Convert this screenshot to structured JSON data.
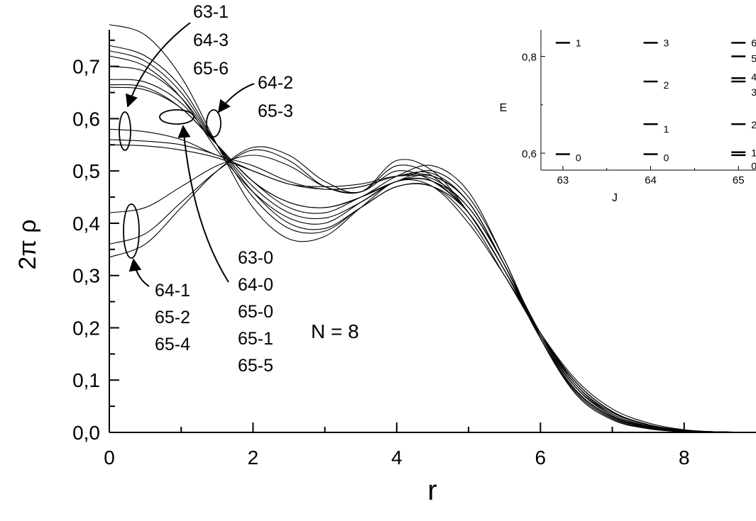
{
  "chart_data": [
    {
      "type": "line",
      "xlabel": "r",
      "ylabel": "2π ρ",
      "xlim": [
        0,
        9
      ],
      "ylim": [
        0,
        0.77
      ],
      "x_ticks": [
        0,
        2,
        4,
        6,
        8
      ],
      "x_tick_labels": [
        "0",
        "2",
        "4",
        "6",
        "8"
      ],
      "y_ticks": [
        0.0,
        0.1,
        0.2,
        0.3,
        0.4,
        0.5,
        0.6,
        0.7
      ],
      "y_tick_labels": [
        "0,0",
        "0,1",
        "0,2",
        "0,3",
        "0,4",
        "0,5",
        "0,6",
        "0,7"
      ],
      "grid": false,
      "series": [
        {
          "x": [
            0,
            0.5,
            1,
            1.5,
            2,
            2.5,
            3,
            3.5,
            4,
            4.5,
            5,
            5.5,
            6,
            6.5,
            7,
            7.5,
            8,
            8.5,
            9
          ],
          "y": [
            0.78,
            0.76,
            0.68,
            0.55,
            0.43,
            0.37,
            0.375,
            0.43,
            0.48,
            0.47,
            0.4,
            0.3,
            0.19,
            0.1,
            0.045,
            0.018,
            0.005,
            0.001,
            0.0
          ]
        },
        {
          "x": [
            0,
            0.5,
            1,
            1.5,
            2,
            2.5,
            3,
            3.5,
            4,
            4.5,
            5,
            5.5,
            6,
            6.5,
            7,
            7.5,
            8,
            8.5,
            9
          ],
          "y": [
            0.74,
            0.72,
            0.66,
            0.55,
            0.45,
            0.39,
            0.385,
            0.43,
            0.47,
            0.47,
            0.41,
            0.3,
            0.185,
            0.095,
            0.04,
            0.015,
            0.004,
            0.001,
            0.0
          ]
        },
        {
          "x": [
            0,
            0.5,
            1,
            1.5,
            2,
            2.5,
            3,
            3.5,
            4,
            4.5,
            5,
            5.5,
            6,
            6.5,
            7,
            7.5,
            8,
            8.5,
            9
          ],
          "y": [
            0.73,
            0.71,
            0.65,
            0.55,
            0.46,
            0.4,
            0.39,
            0.43,
            0.47,
            0.47,
            0.42,
            0.31,
            0.185,
            0.09,
            0.038,
            0.014,
            0.004,
            0.001,
            0.0
          ]
        },
        {
          "x": [
            0,
            0.5,
            1,
            1.5,
            2,
            2.5,
            3,
            3.5,
            4,
            4.5,
            5,
            5.5,
            6,
            6.5,
            7,
            7.5,
            8,
            8.5,
            9
          ],
          "y": [
            0.72,
            0.7,
            0.64,
            0.54,
            0.46,
            0.41,
            0.4,
            0.44,
            0.48,
            0.48,
            0.42,
            0.31,
            0.18,
            0.085,
            0.035,
            0.012,
            0.003,
            0.001,
            0.0
          ]
        },
        {
          "x": [
            0,
            0.5,
            1,
            1.5,
            2,
            2.5,
            3,
            3.5,
            4,
            4.5,
            5,
            5.5,
            6,
            6.5,
            7,
            7.5,
            8,
            8.5,
            9
          ],
          "y": [
            0.7,
            0.69,
            0.64,
            0.55,
            0.47,
            0.42,
            0.41,
            0.44,
            0.48,
            0.48,
            0.43,
            0.32,
            0.18,
            0.08,
            0.03,
            0.01,
            0.002,
            0.0,
            0.0
          ]
        },
        {
          "x": [
            0,
            0.5,
            1,
            1.5,
            2,
            2.5,
            3,
            3.5,
            4,
            4.5,
            5,
            5.5,
            6,
            6.5,
            7,
            7.5,
            8,
            8.5,
            9
          ],
          "y": [
            0.675,
            0.67,
            0.63,
            0.55,
            0.48,
            0.43,
            0.42,
            0.45,
            0.48,
            0.49,
            0.44,
            0.32,
            0.18,
            0.078,
            0.028,
            0.009,
            0.002,
            0.0,
            0.0
          ]
        },
        {
          "x": [
            0,
            0.5,
            1,
            1.5,
            2,
            2.5,
            3,
            3.5,
            4,
            4.5,
            5,
            5.5,
            6,
            6.5,
            7,
            7.5,
            8,
            8.5,
            9
          ],
          "y": [
            0.665,
            0.66,
            0.62,
            0.55,
            0.48,
            0.44,
            0.43,
            0.45,
            0.48,
            0.5,
            0.45,
            0.33,
            0.18,
            0.075,
            0.026,
            0.008,
            0.002,
            0.0,
            0.0
          ]
        },
        {
          "x": [
            0,
            0.5,
            1,
            1.5,
            2,
            2.5,
            3,
            3.5,
            4,
            4.5,
            5,
            5.5,
            6,
            6.5,
            7,
            7.5,
            8,
            8.5,
            9
          ],
          "y": [
            0.66,
            0.655,
            0.62,
            0.55,
            0.48,
            0.44,
            0.43,
            0.45,
            0.49,
            0.51,
            0.46,
            0.33,
            0.18,
            0.072,
            0.024,
            0.007,
            0.001,
            0.0,
            0.0
          ]
        },
        {
          "x": [
            0,
            0.5,
            1,
            1.5,
            2,
            2.5,
            3,
            3.5,
            4,
            4.5,
            5,
            5.5,
            6,
            6.5,
            7,
            7.5,
            8,
            8.5,
            9
          ],
          "y": [
            0.58,
            0.575,
            0.56,
            0.53,
            0.51,
            0.48,
            0.465,
            0.47,
            0.49,
            0.495,
            0.44,
            0.32,
            0.185,
            0.085,
            0.032,
            0.011,
            0.003,
            0.001,
            0.0
          ]
        },
        {
          "x": [
            0,
            0.5,
            1,
            1.5,
            2,
            2.5,
            3,
            3.5,
            4,
            4.5,
            5,
            5.5,
            6,
            6.5,
            7,
            7.5,
            8,
            8.5,
            9
          ],
          "y": [
            0.56,
            0.557,
            0.55,
            0.53,
            0.5,
            0.475,
            0.465,
            0.47,
            0.49,
            0.49,
            0.44,
            0.32,
            0.185,
            0.085,
            0.032,
            0.011,
            0.003,
            0.001,
            0.0
          ]
        },
        {
          "x": [
            0,
            0.5,
            1,
            1.5,
            2,
            2.5,
            3,
            3.5,
            4,
            4.5,
            5,
            5.5,
            6,
            6.5,
            7,
            7.5,
            8,
            8.5,
            9
          ],
          "y": [
            0.55,
            0.548,
            0.54,
            0.525,
            0.5,
            0.475,
            0.47,
            0.475,
            0.49,
            0.485,
            0.43,
            0.32,
            0.19,
            0.09,
            0.035,
            0.012,
            0.003,
            0.001,
            0.0
          ]
        },
        {
          "x": [
            0,
            0.5,
            1,
            1.5,
            2,
            2.5,
            3,
            3.5,
            4,
            4.5,
            5,
            5.5,
            6,
            6.5,
            7,
            7.5,
            8,
            8.5,
            9
          ],
          "y": [
            0.42,
            0.43,
            0.47,
            0.51,
            0.53,
            0.51,
            0.47,
            0.46,
            0.5,
            0.48,
            0.42,
            0.31,
            0.19,
            0.095,
            0.04,
            0.014,
            0.004,
            0.001,
            0.0
          ]
        },
        {
          "x": [
            0,
            0.5,
            1,
            1.5,
            2,
            2.5,
            3,
            3.5,
            4,
            4.5,
            5,
            5.5,
            6,
            6.5,
            7,
            7.5,
            8,
            8.5,
            9
          ],
          "y": [
            0.36,
            0.38,
            0.44,
            0.5,
            0.54,
            0.52,
            0.47,
            0.46,
            0.51,
            0.49,
            0.42,
            0.31,
            0.19,
            0.095,
            0.04,
            0.014,
            0.004,
            0.001,
            0.0
          ]
        },
        {
          "x": [
            0,
            0.5,
            1,
            1.5,
            2,
            2.5,
            3,
            3.5,
            4,
            4.5,
            5,
            5.5,
            6,
            6.5,
            7,
            7.5,
            8,
            8.5,
            9
          ],
          "y": [
            0.335,
            0.36,
            0.43,
            0.5,
            0.545,
            0.53,
            0.48,
            0.46,
            0.52,
            0.5,
            0.42,
            0.31,
            0.19,
            0.095,
            0.04,
            0.014,
            0.004,
            0.001,
            0.0
          ]
        }
      ],
      "annotations": [
        {
          "lines": [
            "63-1",
            "64-3",
            "65-6"
          ]
        },
        {
          "lines": [
            "64-2",
            "65-3"
          ]
        },
        {
          "lines": [
            "63-0",
            "64-0",
            "65-0",
            "65-1",
            "65-5"
          ]
        },
        {
          "lines": [
            "64-1",
            "65-2",
            "65-4"
          ]
        },
        {
          "lines": [
            "N = 8"
          ]
        }
      ]
    },
    {
      "type": "scatter",
      "inset": true,
      "xlabel": "J",
      "ylabel": "E",
      "xlim": [
        62.75,
        65.2
      ],
      "ylim": [
        0.565,
        0.855
      ],
      "x_ticks": [
        63,
        64,
        65
      ],
      "x_tick_labels": [
        "63",
        "64",
        "65"
      ],
      "y_ticks": [
        0.6,
        0.8
      ],
      "y_tick_labels": [
        "0,6",
        "0,8"
      ],
      "levels": [
        {
          "J": 63,
          "E": 0.598,
          "label": "0"
        },
        {
          "J": 63,
          "E": 0.828,
          "label": "1"
        },
        {
          "J": 64,
          "E": 0.598,
          "label": "0"
        },
        {
          "J": 64,
          "E": 0.66,
          "label": "1"
        },
        {
          "J": 64,
          "E": 0.748,
          "label": "2"
        },
        {
          "J": 64,
          "E": 0.828,
          "label": "3"
        },
        {
          "J": 65,
          "E": 0.596,
          "label": "0"
        },
        {
          "J": 65,
          "E": 0.602,
          "label": "1"
        },
        {
          "J": 65,
          "E": 0.66,
          "label": "2"
        },
        {
          "J": 65,
          "E": 0.748,
          "label": "3"
        },
        {
          "J": 65,
          "E": 0.755,
          "label": "4"
        },
        {
          "J": 65,
          "E": 0.8,
          "label": "5"
        },
        {
          "J": 65,
          "E": 0.828,
          "label": "6"
        }
      ]
    }
  ]
}
